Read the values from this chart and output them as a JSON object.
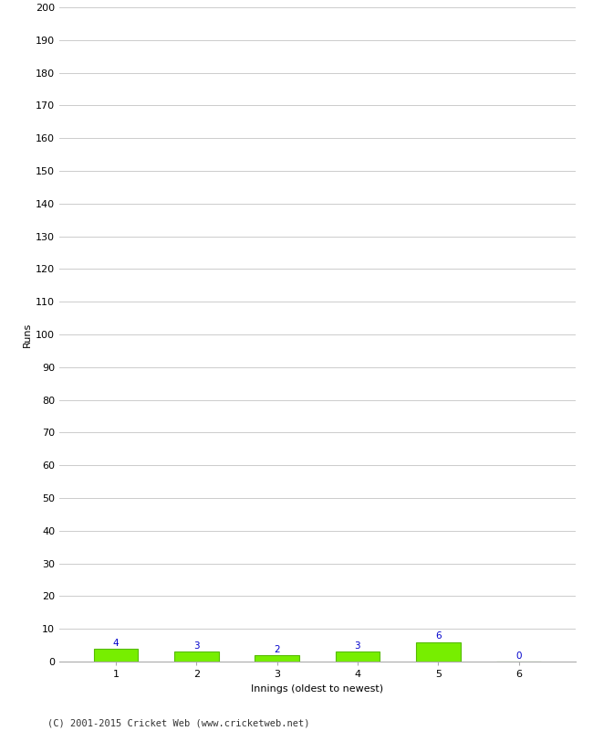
{
  "innings": [
    1,
    2,
    3,
    4,
    5,
    6
  ],
  "runs": [
    4,
    3,
    2,
    3,
    6,
    0
  ],
  "bar_color": "#77ee00",
  "bar_edge_color": "#55bb00",
  "value_color": "#0000cc",
  "ylabel": "Runs",
  "xlabel": "Innings (oldest to newest)",
  "ylim": [
    0,
    200
  ],
  "background_color": "#ffffff",
  "grid_color": "#cccccc",
  "footer": "(C) 2001-2015 Cricket Web (www.cricketweb.net)",
  "value_fontsize": 7.5,
  "axis_label_fontsize": 8,
  "tick_fontsize": 8,
  "footer_fontsize": 7.5
}
